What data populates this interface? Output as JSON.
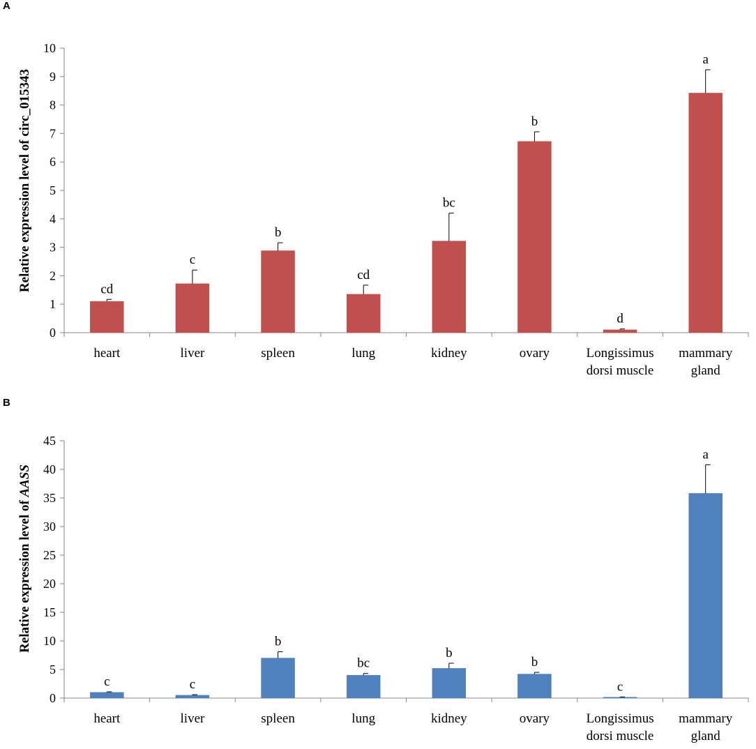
{
  "panels": [
    {
      "letter": "A",
      "ylabel": "Relative expression level of circ_015343",
      "ylabel_prefix": "",
      "ylabel_italic": ""
    },
    {
      "letter": "B",
      "ylabel": "Relative expression level of AASS",
      "ylabel_prefix": "Relative expression level of ",
      "ylabel_italic": "AASS"
    }
  ],
  "chart_data": [
    {
      "type": "bar",
      "title": "",
      "xlabel": "",
      "ylabel": "Relative expression level of circ_015343",
      "color": "#C0504D",
      "ylim": [
        0,
        10
      ],
      "yticks": [
        "0",
        "1",
        "2",
        "3",
        "4",
        "5",
        "6",
        "7",
        "8",
        "9",
        "10"
      ],
      "categories": [
        [
          "heart"
        ],
        [
          "liver"
        ],
        [
          "spleen"
        ],
        [
          "lung"
        ],
        [
          "kidney"
        ],
        [
          "ovary"
        ],
        [
          "Longissimus",
          "dorsi muscle"
        ],
        [
          "mammary",
          "gland"
        ]
      ],
      "values": [
        1.1,
        1.72,
        2.88,
        1.35,
        3.22,
        6.72,
        0.1,
        8.42
      ],
      "errors": [
        0.07,
        0.48,
        0.28,
        0.32,
        0.98,
        0.34,
        0.03,
        0.82
      ],
      "labels": [
        "cd",
        "c",
        "b",
        "cd",
        "bc",
        "b",
        "d",
        "a"
      ]
    },
    {
      "type": "bar",
      "title": "",
      "xlabel": "",
      "ylabel": "Relative expression level of AASS",
      "color": "#4F81BD",
      "ylim": [
        0,
        45
      ],
      "yticks": [
        "0",
        "5",
        "10",
        "15",
        "20",
        "25",
        "30",
        "35",
        "40",
        "45"
      ],
      "categories": [
        [
          "heart"
        ],
        [
          "liver"
        ],
        [
          "spleen"
        ],
        [
          "lung"
        ],
        [
          "kidney"
        ],
        [
          "ovary"
        ],
        [
          "Longissimus",
          "dorsi muscle"
        ],
        [
          "mammary",
          "gland"
        ]
      ],
      "values": [
        1.0,
        0.5,
        7.0,
        4.0,
        5.2,
        4.2,
        0.15,
        35.8
      ],
      "errors": [
        0.1,
        0.1,
        1.1,
        0.3,
        0.9,
        0.3,
        0.05,
        5.0
      ],
      "labels": [
        "c",
        "c",
        "b",
        "bc",
        "b",
        "b",
        "c",
        "a"
      ]
    }
  ]
}
